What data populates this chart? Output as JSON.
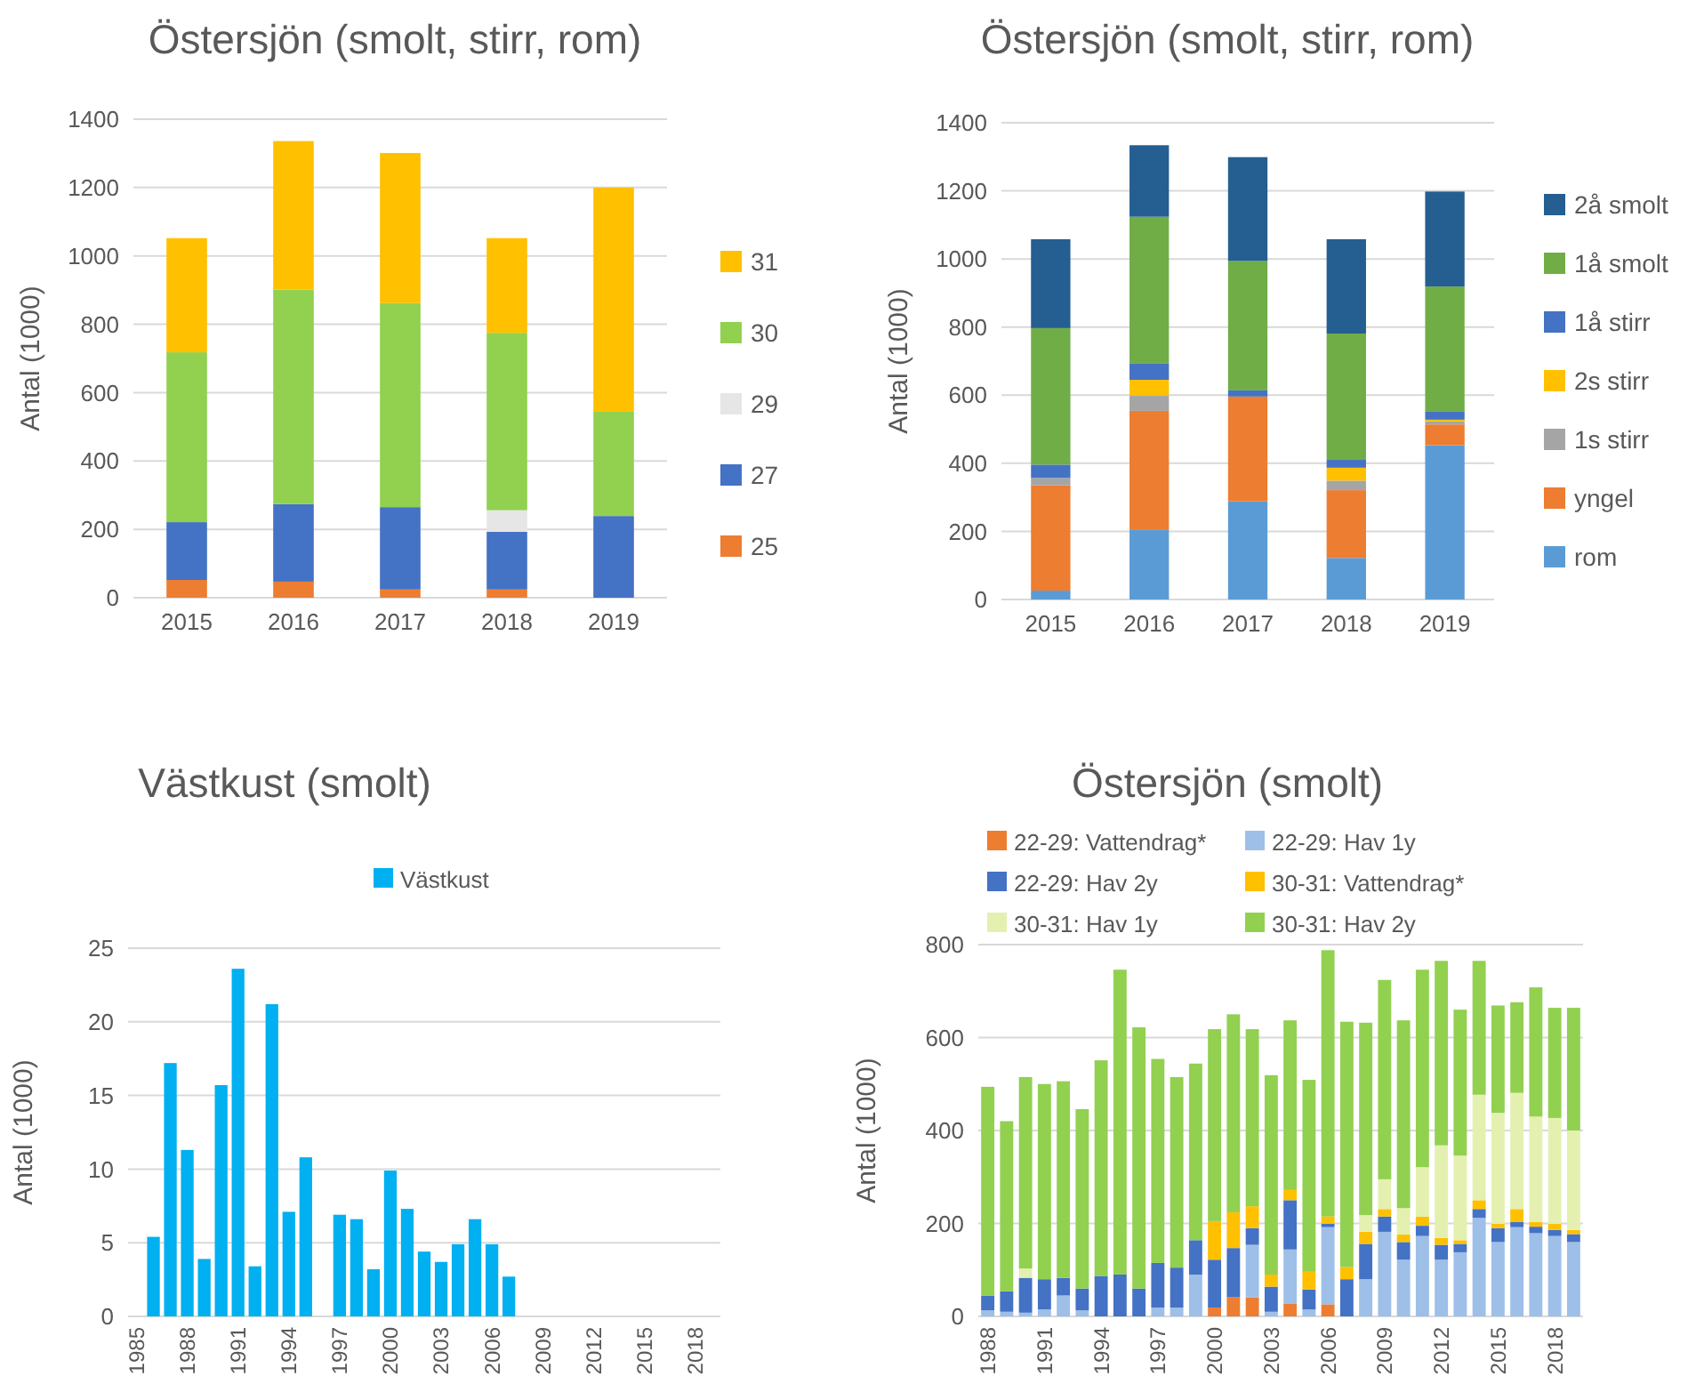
{
  "chart_data": [
    {
      "type": "bar",
      "title": "Östersjön (smolt, stirr, rom)",
      "ylabel": "Antal (1000)",
      "categories": [
        "2015",
        "2016",
        "2017",
        "2018",
        "2019"
      ],
      "stacked": true,
      "ylim": [
        0,
        1400
      ],
      "yticks": [
        0,
        200,
        400,
        600,
        800,
        1000,
        1200,
        1400
      ],
      "grid": "y",
      "legend": "right",
      "series": [
        {
          "name": "25",
          "color": "#ed7d31",
          "values": [
            52,
            47,
            24,
            24,
            0
          ]
        },
        {
          "name": "27",
          "color": "#4472c4",
          "values": [
            169,
            227,
            241,
            169,
            239
          ]
        },
        {
          "name": "29",
          "color": "#e7e6e6",
          "values": [
            0,
            0,
            0,
            63,
            0
          ]
        },
        {
          "name": "30",
          "color": "#92d050",
          "values": [
            497,
            627,
            597,
            519,
            305
          ]
        },
        {
          "name": "31",
          "color": "#ffc000",
          "values": [
            334,
            435,
            439,
            277,
            656
          ]
        }
      ]
    },
    {
      "type": "bar",
      "title": "Östersjön (smolt, stirr, rom)",
      "ylabel": "Antal (1000)",
      "categories": [
        "2015",
        "2016",
        "2017",
        "2018",
        "2019"
      ],
      "stacked": true,
      "ylim": [
        0,
        1400
      ],
      "yticks": [
        0,
        200,
        400,
        600,
        800,
        1000,
        1200,
        1400
      ],
      "grid": "y",
      "legend": "right",
      "series": [
        {
          "name": "rom",
          "color": "#5b9bd5",
          "values": [
            26,
            206,
            288,
            122,
            453
          ]
        },
        {
          "name": "yngel",
          "color": "#ed7d31",
          "values": [
            309,
            348,
            308,
            199,
            61
          ]
        },
        {
          "name": "1s stirr",
          "color": "#a5a5a5",
          "values": [
            22,
            44,
            0,
            28,
            9
          ]
        },
        {
          "name": "2s stirr",
          "color": "#ffc000",
          "values": [
            0,
            47,
            0,
            38,
            5
          ]
        },
        {
          "name": "1å stirr",
          "color": "#4472c4",
          "values": [
            39,
            49,
            18,
            23,
            25
          ]
        },
        {
          "name": "1å smolt",
          "color": "#70ad47",
          "values": [
            401,
            430,
            380,
            371,
            366
          ]
        },
        {
          "name": "2å smolt",
          "color": "#255e91",
          "values": [
            261,
            210,
            305,
            277,
            279
          ]
        }
      ]
    },
    {
      "type": "bar",
      "title": "Västkust (smolt)",
      "ylabel": "Antal (1000)",
      "categories": [
        "1985",
        null,
        null,
        "1988",
        null,
        null,
        "1991",
        null,
        null,
        "1994",
        null,
        null,
        "1997",
        null,
        null,
        "2000",
        null,
        null,
        "2003",
        null,
        null,
        "2006",
        null,
        null,
        "2009",
        null,
        null,
        "2012",
        null,
        null,
        "2015",
        null,
        null,
        "2018",
        null
      ],
      "ylim": [
        0,
        25
      ],
      "yticks": [
        0,
        5,
        10,
        15,
        20,
        25
      ],
      "grid": "y",
      "legend": "top",
      "series": [
        {
          "name": "Västkust",
          "color": "#00b0f0",
          "values": [
            null,
            5.4,
            17.2,
            11.3,
            3.9,
            15.7,
            23.6,
            3.4,
            21.2,
            7.1,
            10.8,
            null,
            6.9,
            6.6,
            3.2,
            9.9,
            7.3,
            4.4,
            3.7,
            4.9,
            6.6,
            4.9,
            2.7,
            null,
            null,
            null,
            null,
            null,
            null,
            null,
            null,
            null,
            null,
            null,
            null
          ]
        }
      ]
    },
    {
      "type": "bar",
      "title": "Östersjön (smolt)",
      "ylabel": "Antal (1000)",
      "categories": [
        "1988",
        null,
        null,
        "1991",
        null,
        null,
        "1994",
        null,
        null,
        "1997",
        null,
        null,
        "2000",
        null,
        null,
        "2003",
        null,
        null,
        "2006",
        null,
        null,
        "2009",
        null,
        null,
        "2012",
        null,
        null,
        "2015",
        null,
        null,
        "2018",
        null
      ],
      "stacked": true,
      "ylim": [
        0,
        800
      ],
      "yticks": [
        0,
        200,
        400,
        600,
        800
      ],
      "grid": "y",
      "legend": "top",
      "series": [
        {
          "name": "22-29: Vattendrag*",
          "color": "#ed7d31",
          "values": [
            0,
            0,
            0,
            0,
            0,
            0,
            0,
            0,
            0,
            0,
            0,
            0,
            19,
            41,
            41,
            0,
            28,
            0,
            26,
            0,
            0,
            0,
            0,
            0,
            0,
            0,
            0,
            0,
            0,
            0,
            0,
            0
          ]
        },
        {
          "name": "22-29: Hav 1y",
          "color": "#9dbfe8",
          "values": [
            13,
            10,
            8,
            15,
            45,
            13,
            null,
            0,
            0,
            19,
            19,
            90,
            0,
            0,
            113,
            10,
            116,
            15,
            166,
            null,
            80,
            182,
            122,
            173,
            122,
            138,
            212,
            160,
            192,
            179,
            173,
            160
          ]
        },
        {
          "name": "22-29: Hav 2y",
          "color": "#4472c4",
          "values": [
            32,
            44,
            75,
            65,
            38,
            47,
            87,
            90,
            60,
            96,
            86,
            74,
            103,
            106,
            36,
            54,
            106,
            43,
            7,
            80,
            76,
            33,
            38,
            22,
            32,
            18,
            19,
            30,
            11,
            14,
            13,
            17
          ]
        },
        {
          "name": "30-31: Vattendrag*",
          "color": "#ffc000",
          "values": [
            0,
            0,
            0,
            0,
            0,
            0,
            0,
            0,
            0,
            0,
            0,
            0,
            83,
            77,
            47,
            26,
            22,
            38,
            16,
            26,
            26,
            16,
            16,
            20,
            15,
            8,
            19,
            9,
            28,
            10,
            13,
            9
          ]
        },
        {
          "name": "30-31: Hav 1y",
          "color": "#e4f0b0",
          "values": [
            0,
            0,
            20,
            0,
            0,
            0,
            0,
            0,
            0,
            0,
            0,
            0,
            0,
            0,
            0,
            0,
            0,
            0,
            0,
            0,
            36,
            64,
            57,
            106,
            199,
            182,
            227,
            239,
            250,
            227,
            228,
            214
          ]
        },
        {
          "name": "30-31: Hav 2y",
          "color": "#92d050",
          "values": [
            449,
            366,
            412,
            420,
            423,
            386,
            464,
            656,
            562,
            439,
            410,
            380,
            413,
            426,
            381,
            429,
            365,
            413,
            573,
            528,
            414,
            429,
            404,
            425,
            397,
            314,
            288,
            231,
            195,
            278,
            237,
            264
          ]
        }
      ]
    }
  ]
}
